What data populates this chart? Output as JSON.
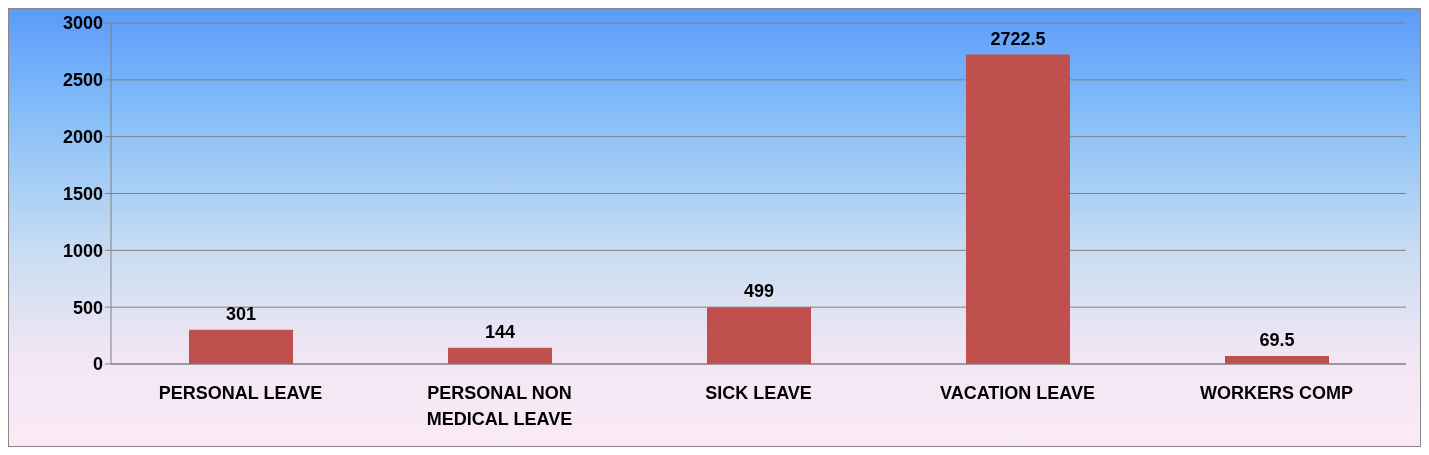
{
  "chart_data": {
    "type": "bar",
    "categories": [
      "PERSONAL LEAVE",
      "PERSONAL NON MEDICAL LEAVE",
      "SICK LEAVE",
      "VACATION LEAVE",
      "WORKERS COMP"
    ],
    "values": [
      301,
      144,
      499,
      2722.5,
      69.5
    ],
    "color": "#c0504d",
    "ylim": [
      0,
      3000
    ],
    "yticks": [
      0,
      500,
      1000,
      1500,
      2000,
      2500,
      3000
    ],
    "grid": "y",
    "data_labels": true
  }
}
